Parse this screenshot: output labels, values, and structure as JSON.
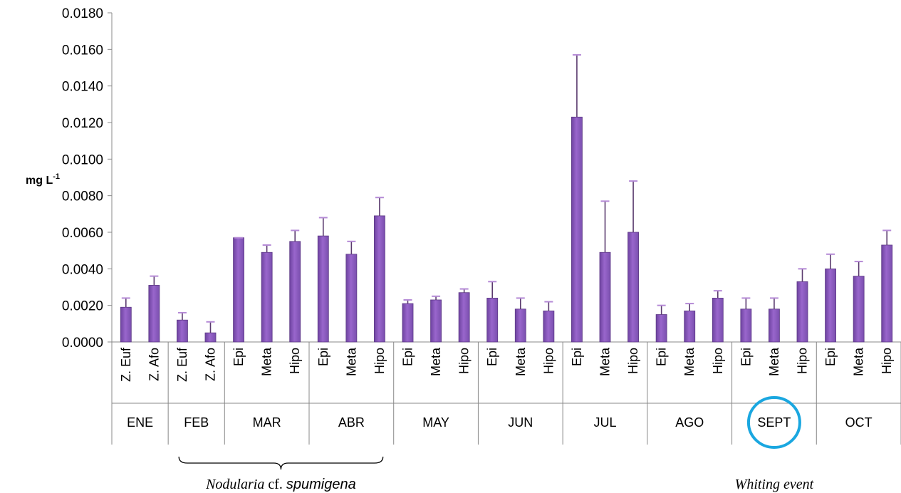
{
  "chart_data": {
    "type": "bar",
    "ylabel": "mg L",
    "ylabel_superscript": "-1",
    "ylim": [
      0,
      0.018
    ],
    "ytick_step": 0.002,
    "ytick_labels": [
      "0.0000",
      "0.0020",
      "0.0040",
      "0.0060",
      "0.0080",
      "0.0100",
      "0.0120",
      "0.0140",
      "0.0160",
      "0.0180"
    ],
    "grid": false,
    "bar_color": "#9966CC",
    "error_color": "#5a3a6e",
    "groups": [
      {
        "month": "ENE",
        "categories": [
          "Z. Euf",
          "Z. Afo"
        ],
        "values": [
          0.0019,
          0.0031
        ],
        "errors": [
          0.0005,
          0.0005
        ]
      },
      {
        "month": "FEB",
        "categories": [
          "Z. Euf",
          "Z. Afo"
        ],
        "values": [
          0.0012,
          0.0005
        ],
        "errors": [
          0.0004,
          0.0006
        ]
      },
      {
        "month": "MAR",
        "categories": [
          "Epi",
          "Meta",
          "Hipo"
        ],
        "values": [
          0.0057,
          0.0049,
          0.0055
        ],
        "errors": [
          0.0,
          0.0004,
          0.0006
        ]
      },
      {
        "month": "ABR",
        "categories": [
          "Epi",
          "Meta",
          "Hipo"
        ],
        "values": [
          0.0058,
          0.0048,
          0.0069
        ],
        "errors": [
          0.001,
          0.0007,
          0.001
        ]
      },
      {
        "month": "MAY",
        "categories": [
          "Epi",
          "Meta",
          "Hipo"
        ],
        "values": [
          0.0021,
          0.0023,
          0.0027
        ],
        "errors": [
          0.0002,
          0.0002,
          0.0002
        ]
      },
      {
        "month": "JUN",
        "categories": [
          "Epi",
          "Meta",
          "Hipo"
        ],
        "values": [
          0.0024,
          0.0018,
          0.0017
        ],
        "errors": [
          0.0009,
          0.0006,
          0.0005
        ]
      },
      {
        "month": "JUL",
        "categories": [
          "Epi",
          "Meta",
          "Hipo"
        ],
        "values": [
          0.0123,
          0.0049,
          0.006
        ],
        "errors": [
          0.0034,
          0.0028,
          0.0028
        ]
      },
      {
        "month": "AGO",
        "categories": [
          "Epi",
          "Meta",
          "Hipo"
        ],
        "values": [
          0.0015,
          0.0017,
          0.0024
        ],
        "errors": [
          0.0005,
          0.0004,
          0.0004
        ]
      },
      {
        "month": "SEPT",
        "categories": [
          "Epi",
          "Meta",
          "Hipo"
        ],
        "values": [
          0.0018,
          0.0018,
          0.0033
        ],
        "errors": [
          0.0006,
          0.0006,
          0.0007
        ]
      },
      {
        "month": "OCT",
        "categories": [
          "Epi",
          "Meta",
          "Hipo"
        ],
        "values": [
          0.004,
          0.0036,
          0.0053
        ],
        "errors": [
          0.0008,
          0.0008,
          0.0008
        ]
      }
    ],
    "annotations": {
      "nodularia": {
        "parts": [
          "Nodularia",
          " cf. ",
          "spumigena"
        ],
        "span_months": [
          "FEB",
          "ABR"
        ]
      },
      "whiting": {
        "text": "Whiting event",
        "month": "SEPT",
        "circle_color": "#1aa7e0"
      }
    }
  }
}
